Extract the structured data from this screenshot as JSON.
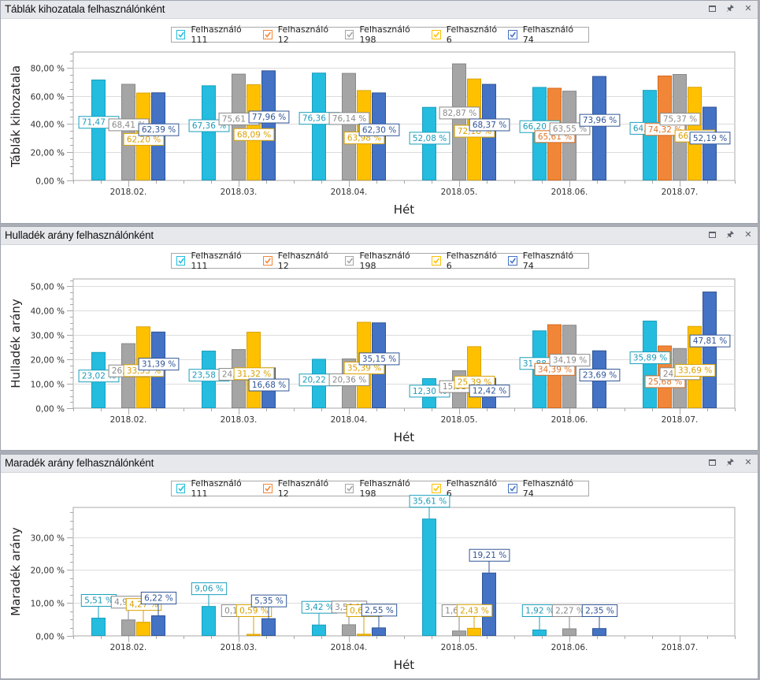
{
  "window_controls": {
    "maximize": "maximize-icon",
    "pin": "pin-icon",
    "close": "close-icon"
  },
  "series_colors": {
    "Felhasználó 111": {
      "fill": "#24bcdf",
      "stroke": "#1a9fbd",
      "label": "#1c9bb8"
    },
    "Felhasználó 12": {
      "fill": "#f28638",
      "stroke": "#d26a1f",
      "label": "#e07326"
    },
    "Felhasználó 198": {
      "fill": "#a5a5a5",
      "stroke": "#888888",
      "label": "#8a8a8a"
    },
    "Felhasználó 6": {
      "fill": "#ffc000",
      "stroke": "#d9a200",
      "label": "#d9a000"
    },
    "Felhasználó 74": {
      "fill": "#4472c4",
      "stroke": "#2f5597",
      "label": "#2f5597"
    }
  },
  "panels": [
    {
      "title": "Táblák kihozatala felhasználónként",
      "legend": [
        "Felhasználó 111",
        "Felhasználó 12",
        "Felhasználó 198",
        "Felhasználó 6",
        "Felhasználó 74"
      ]
    },
    {
      "title": "Hulladék arány felhasználónként",
      "legend": [
        "Felhasználó 111",
        "Felhasználó 12",
        "Felhasználó 198",
        "Felhasználó 6",
        "Felhasználó 74"
      ]
    },
    {
      "title": "Maradék arány felhasználónként",
      "legend": [
        "Felhasználó 111",
        "Felhasználó 12",
        "Felhasználó 198",
        "Felhasználó 6",
        "Felhasználó 74"
      ]
    }
  ],
  "chart_data": [
    {
      "type": "bar",
      "title": "Táblák kihozatala felhasználónként",
      "xlabel": "Hét",
      "ylabel": "Táblák kihozatala",
      "ylim": [
        0,
        91
      ],
      "yticks": [
        0,
        20,
        40,
        60,
        80
      ],
      "ytick_labels": [
        "0,00 %",
        "20,00 %",
        "40,00 %",
        "60,00 %",
        "80,00 %"
      ],
      "grid": true,
      "legend_position": "top-center",
      "categories": [
        "2018.02.",
        "2018.03.",
        "2018.04.",
        "2018.05.",
        "2018.06.",
        "2018.07."
      ],
      "series": [
        {
          "name": "Felhasználó 111",
          "values": [
            71.47,
            67.36,
            76.36,
            52.08,
            66.2,
            64.11
          ],
          "labels": [
            "71,47 %",
            "67,36 %",
            "76,36 %",
            "52,08 %",
            "66,20 %",
            "64,11 %"
          ]
        },
        {
          "name": "Felhasználó 12",
          "values": [
            null,
            null,
            null,
            null,
            65.61,
            74.32
          ],
          "labels": [
            null,
            null,
            null,
            null,
            "65,61 %",
            "74,32 %"
          ]
        },
        {
          "name": "Felhasználó 198",
          "values": [
            68.41,
            75.61,
            76.14,
            82.87,
            63.55,
            75.37
          ],
          "labels": [
            "68,41 %",
            "75,61 %",
            "76,14 %",
            "82,87 %",
            "63,55 %",
            "75,37 %"
          ]
        },
        {
          "name": "Felhasználó 6",
          "values": [
            62.2,
            68.09,
            63.98,
            72.18,
            null,
            66.31
          ],
          "labels": [
            "62,20 %",
            "68,09 %",
            "63,98 %",
            "72,18 %",
            null,
            "66,31 %"
          ]
        },
        {
          "name": "Felhasználó 74",
          "values": [
            62.39,
            77.96,
            62.3,
            68.37,
            73.96,
            52.19
          ],
          "labels": [
            "62,39 %",
            "77,96 %",
            "62,30 %",
            "68,37 %",
            "73,96 %",
            "52,19 %"
          ]
        }
      ]
    },
    {
      "type": "bar",
      "title": "Hulladék arány felhasználónként",
      "xlabel": "Hét",
      "ylabel": "Hulladék arány",
      "ylim": [
        0,
        53
      ],
      "yticks": [
        0,
        10,
        20,
        30,
        40,
        50
      ],
      "ytick_labels": [
        "0,00 %",
        "10,00 %",
        "20,00 %",
        "30,00 %",
        "40,00 %",
        "50,00 %"
      ],
      "grid": true,
      "legend_position": "top-center",
      "categories": [
        "2018.02.",
        "2018.03.",
        "2018.04.",
        "2018.05.",
        "2018.06.",
        "2018.07."
      ],
      "series": [
        {
          "name": "Felhasználó 111",
          "values": [
            23.02,
            23.58,
            20.22,
            12.3,
            31.88,
            35.89
          ],
          "labels": [
            "23,02 %",
            "23,58 %",
            "20,22 %",
            "12,30 %",
            "31,88 %",
            "35,89 %"
          ]
        },
        {
          "name": "Felhasználó 12",
          "values": [
            null,
            null,
            null,
            null,
            34.39,
            25.68
          ],
          "labels": [
            null,
            null,
            null,
            null,
            "34,39 %",
            "25,68 %"
          ]
        },
        {
          "name": "Felhasználó 198",
          "values": [
            26.62,
            24.21,
            20.36,
            15.51,
            34.19,
            24.63
          ],
          "labels": [
            "26,62 %",
            "24,21 %",
            "20,36 %",
            "15,51 %",
            "34,19 %",
            "24,63 %"
          ]
        },
        {
          "name": "Felhasználó 6",
          "values": [
            33.53,
            31.32,
            35.39,
            25.39,
            null,
            33.69
          ],
          "labels": [
            "33,53 %",
            "31,32 %",
            "35,39 %",
            "25,39 %",
            null,
            "33,69 %"
          ]
        },
        {
          "name": "Felhasználó 74",
          "values": [
            31.39,
            16.68,
            35.15,
            12.42,
            23.69,
            47.81
          ],
          "labels": [
            "31,39 %",
            "16,68 %",
            "35,15 %",
            "12,42 %",
            "23,69 %",
            "47,81 %"
          ]
        }
      ]
    },
    {
      "type": "bar",
      "title": "Maradék arány felhasználónként",
      "xlabel": "Hét",
      "ylabel": "Maradék arány",
      "ylim": [
        0,
        39
      ],
      "yticks": [
        0,
        10,
        20,
        30
      ],
      "ytick_labels": [
        "0,00 %",
        "10,00 %",
        "20,00 %",
        "30,00 %"
      ],
      "grid": true,
      "legend_position": "top-center",
      "categories": [
        "2018.02.",
        "2018.03.",
        "2018.04.",
        "2018.05.",
        "2018.06.",
        "2018.07."
      ],
      "series": [
        {
          "name": "Felhasználó 111",
          "values": [
            5.51,
            9.06,
            3.42,
            35.61,
            1.92,
            null
          ],
          "labels": [
            "5,51 %",
            "9,06 %",
            "3,42 %",
            "35,61 %",
            "1,92 %",
            null
          ]
        },
        {
          "name": "Felhasználó 12",
          "values": [
            null,
            null,
            null,
            null,
            null,
            null
          ],
          "labels": [
            null,
            null,
            null,
            null,
            null,
            null
          ]
        },
        {
          "name": "Felhasználó 198",
          "values": [
            4.97,
            0.17,
            3.5,
            1.61,
            2.27,
            null
          ],
          "labels": [
            "4,97 %",
            "0,17 %",
            "3,50 %",
            "1,61 %",
            "2,27 %",
            null
          ]
        },
        {
          "name": "Felhasználó 6",
          "values": [
            4.27,
            0.59,
            0.63,
            2.43,
            null,
            null
          ],
          "labels": [
            "4,27 %",
            "0,59 %",
            "0,63 %",
            "2,43 %",
            null,
            null
          ]
        },
        {
          "name": "Felhasználó 74",
          "values": [
            6.22,
            5.35,
            2.55,
            19.21,
            2.35,
            null
          ],
          "labels": [
            "6,22 %",
            "5,35 %",
            "2,55 %",
            "19,21 %",
            "2,35 %",
            null
          ]
        }
      ]
    }
  ]
}
